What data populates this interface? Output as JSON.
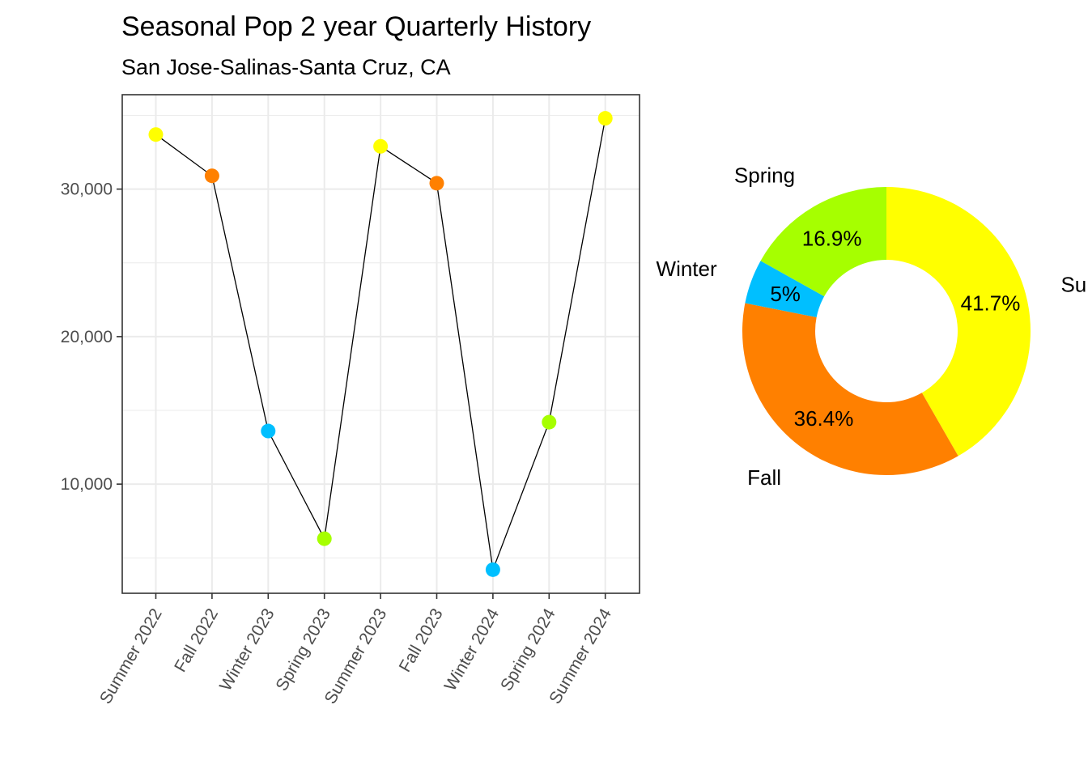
{
  "header": {
    "title": "Seasonal Pop 2 year Quarterly History",
    "subtitle": "San Jose-Salinas-Santa Cruz, CA"
  },
  "colors": {
    "Summer": "#FFFF00",
    "Fall": "#FF8000",
    "Winter": "#00BFFF",
    "Spring": "#A6FF00",
    "line": "#000000",
    "panel_border": "#333333",
    "grid": "#ebebeb"
  },
  "chart_data": [
    {
      "type": "line",
      "categories": [
        "Summer 2022",
        "Fall 2022",
        "Winter 2023",
        "Spring 2023",
        "Summer 2023",
        "Fall 2023",
        "Winter 2024",
        "Spring 2024",
        "Summer 2024"
      ],
      "seasons": [
        "Summer",
        "Fall",
        "Winter",
        "Spring",
        "Summer",
        "Fall",
        "Winter",
        "Spring",
        "Summer"
      ],
      "values": [
        33700,
        30900,
        13600,
        6300,
        32900,
        30400,
        4200,
        14200,
        34800
      ],
      "yticks": [
        10000,
        20000,
        30000
      ],
      "ytick_labels": [
        "10,000",
        "20,000",
        "30,000"
      ],
      "ylim": [
        2600,
        36400
      ],
      "grid": true
    },
    {
      "type": "pie",
      "donut": true,
      "slices": [
        {
          "label": "Summer",
          "value": 41.7,
          "pct_label": "41.7%"
        },
        {
          "label": "Fall",
          "value": 36.4,
          "pct_label": "36.4%"
        },
        {
          "label": "Winter",
          "value": 5.0,
          "pct_label": "5%"
        },
        {
          "label": "Spring",
          "value": 16.9,
          "pct_label": "16.9%"
        }
      ]
    }
  ]
}
